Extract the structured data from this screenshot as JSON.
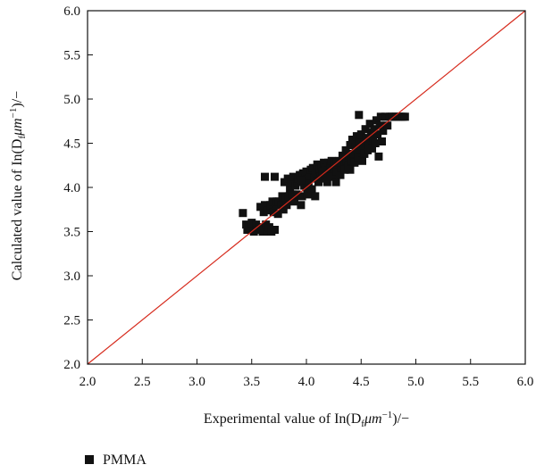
{
  "chart_data": {
    "type": "scatter",
    "xlabel": {
      "main": "Experimental value of In(D",
      "sub": "f",
      "unit": "μm",
      "sup": "−1",
      "tail": ")/−"
    },
    "ylabel": {
      "main": "Calculated value of In(D",
      "sub": "f",
      "unit": "μm",
      "sup": "−1",
      "tail": ")/−"
    },
    "xlim": [
      2.0,
      6.0
    ],
    "ylim": [
      2.0,
      6.0
    ],
    "x_ticks": [
      "2.0",
      "2.5",
      "3.0",
      "3.5",
      "4.0",
      "4.5",
      "5.0",
      "5.5",
      "6.0"
    ],
    "y_ticks": [
      "2.0",
      "2.5",
      "3.0",
      "3.5",
      "4.0",
      "4.5",
      "5.0",
      "5.5",
      "6.0"
    ],
    "grid": false,
    "legend_position": "bottom-left",
    "reference_line": {
      "x": [
        2.0,
        6.0
      ],
      "y": [
        2.0,
        6.0
      ],
      "color": "#d62a1c"
    },
    "series": [
      {
        "name": "PMMA",
        "marker": "square",
        "color": "#111111",
        "points": [
          [
            3.42,
            3.71
          ],
          [
            3.45,
            3.58
          ],
          [
            3.46,
            3.52
          ],
          [
            3.48,
            3.55
          ],
          [
            3.5,
            3.6
          ],
          [
            3.52,
            3.5
          ],
          [
            3.54,
            3.58
          ],
          [
            3.55,
            3.52
          ],
          [
            3.57,
            3.55
          ],
          [
            3.58,
            3.78
          ],
          [
            3.6,
            3.5
          ],
          [
            3.61,
            3.72
          ],
          [
            3.62,
            3.8
          ],
          [
            3.63,
            3.58
          ],
          [
            3.64,
            3.5
          ],
          [
            3.65,
            3.74
          ],
          [
            3.66,
            3.55
          ],
          [
            3.67,
            3.8
          ],
          [
            3.68,
            3.5
          ],
          [
            3.69,
            3.84
          ],
          [
            3.7,
            3.72
          ],
          [
            3.71,
            3.52
          ],
          [
            3.72,
            3.8
          ],
          [
            3.73,
            3.84
          ],
          [
            3.62,
            4.12
          ],
          [
            3.71,
            4.12
          ],
          [
            3.74,
            3.7
          ],
          [
            3.75,
            3.84
          ],
          [
            3.77,
            3.8
          ],
          [
            3.78,
            3.9
          ],
          [
            3.79,
            3.75
          ],
          [
            3.8,
            4.06
          ],
          [
            3.81,
            3.88
          ],
          [
            3.82,
            3.8
          ],
          [
            3.83,
            4.1
          ],
          [
            3.84,
            3.9
          ],
          [
            3.85,
            3.98
          ],
          [
            3.86,
            4.06
          ],
          [
            3.87,
            3.92
          ],
          [
            3.88,
            4.12
          ],
          [
            3.89,
            3.84
          ],
          [
            3.9,
            4.02
          ],
          [
            3.91,
            3.92
          ],
          [
            3.92,
            4.06
          ],
          [
            3.93,
            4.1
          ],
          [
            3.94,
            4.14
          ],
          [
            3.95,
            3.8
          ],
          [
            3.96,
            3.9
          ],
          [
            3.97,
            4.16
          ],
          [
            3.98,
            4.02
          ],
          [
            3.99,
            4.1
          ],
          [
            4.0,
            4.18
          ],
          [
            4.01,
            3.92
          ],
          [
            4.02,
            4.06
          ],
          [
            4.03,
            4.13
          ],
          [
            4.04,
            4.2
          ],
          [
            4.05,
            3.98
          ],
          [
            4.06,
            4.22
          ],
          [
            4.07,
            4.1
          ],
          [
            4.08,
            3.9
          ],
          [
            4.09,
            4.16
          ],
          [
            4.1,
            4.26
          ],
          [
            4.11,
            4.06
          ],
          [
            4.12,
            4.2
          ],
          [
            4.13,
            4.12
          ],
          [
            4.14,
            4.24
          ],
          [
            4.15,
            4.18
          ],
          [
            4.16,
            4.28
          ],
          [
            4.17,
            4.1
          ],
          [
            4.18,
            4.22
          ],
          [
            4.19,
            4.06
          ],
          [
            4.2,
            4.28
          ],
          [
            4.21,
            4.16
          ],
          [
            4.22,
            4.24
          ],
          [
            4.23,
            4.3
          ],
          [
            4.24,
            4.12
          ],
          [
            4.25,
            4.2
          ],
          [
            4.26,
            4.28
          ],
          [
            4.27,
            4.06
          ],
          [
            4.28,
            4.18
          ],
          [
            4.29,
            4.26
          ],
          [
            4.3,
            4.3
          ],
          [
            4.31,
            4.14
          ],
          [
            4.32,
            4.22
          ],
          [
            4.33,
            4.36
          ],
          [
            4.34,
            4.28
          ],
          [
            4.35,
            4.2
          ],
          [
            4.36,
            4.42
          ],
          [
            4.37,
            4.3
          ],
          [
            4.38,
            4.24
          ],
          [
            4.39,
            4.36
          ],
          [
            4.4,
            4.48
          ],
          [
            4.41,
            4.3
          ],
          [
            4.42,
            4.54
          ],
          [
            4.43,
            4.38
          ],
          [
            4.44,
            4.28
          ],
          [
            4.45,
            4.46
          ],
          [
            4.46,
            4.58
          ],
          [
            4.47,
            4.34
          ],
          [
            4.48,
            4.52
          ],
          [
            4.49,
            4.42
          ],
          [
            4.5,
            4.6
          ],
          [
            4.51,
            4.3
          ],
          [
            4.52,
            4.48
          ],
          [
            4.53,
            4.38
          ],
          [
            4.54,
            4.66
          ],
          [
            4.55,
            4.56
          ],
          [
            4.56,
            4.42
          ],
          [
            4.57,
            4.5
          ],
          [
            4.58,
            4.72
          ],
          [
            4.59,
            4.62
          ],
          [
            4.6,
            4.44
          ],
          [
            4.61,
            4.56
          ],
          [
            4.62,
            4.66
          ],
          [
            4.63,
            4.5
          ],
          [
            4.64,
            4.76
          ],
          [
            4.65,
            4.6
          ],
          [
            4.66,
            4.35
          ],
          [
            4.67,
            4.7
          ],
          [
            4.68,
            4.8
          ],
          [
            4.69,
            4.52
          ],
          [
            4.7,
            4.64
          ],
          [
            4.72,
            4.8
          ],
          [
            4.74,
            4.7
          ],
          [
            4.76,
            4.8
          ],
          [
            4.78,
            4.8
          ],
          [
            4.8,
            4.8
          ],
          [
            4.82,
            4.8
          ],
          [
            4.84,
            4.8
          ],
          [
            4.86,
            4.8
          ],
          [
            4.88,
            4.8
          ],
          [
            4.9,
            4.8
          ],
          [
            4.48,
            4.82
          ],
          [
            4.4,
            4.2
          ],
          [
            4.28,
            4.28
          ],
          [
            4.2,
            4.12
          ],
          [
            4.0,
            4.0
          ],
          [
            3.95,
            4.08
          ]
        ]
      }
    ]
  }
}
